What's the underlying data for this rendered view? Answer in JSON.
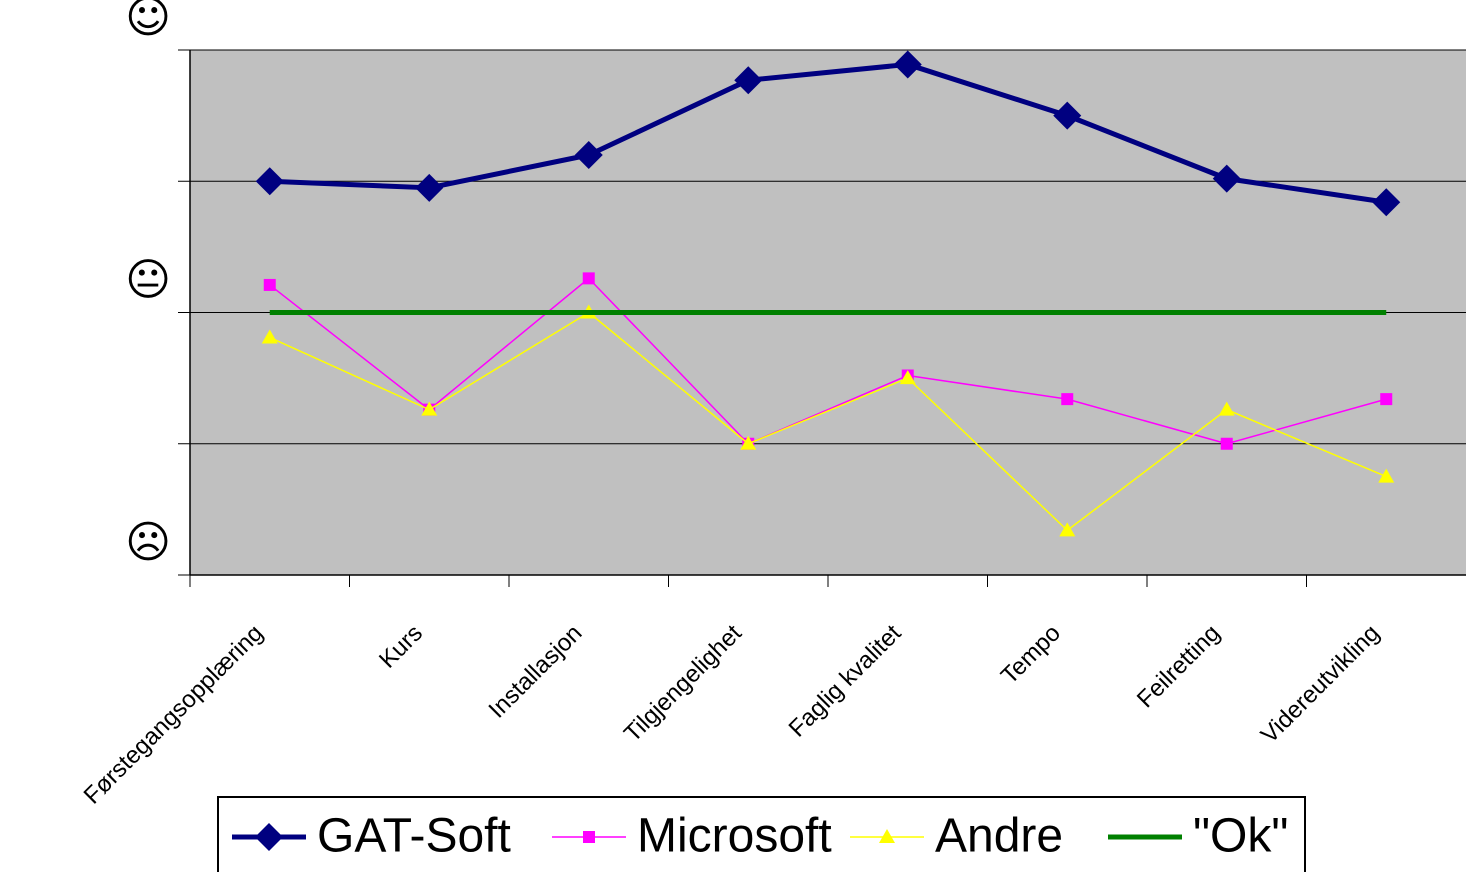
{
  "chart_data": {
    "type": "line",
    "categories": [
      "Førstegangsopplæring",
      "Kurs",
      "Installasjon",
      "Tilgjengelighet",
      "Faglig kvalitet",
      "Tempo",
      "Feilretting",
      "Videreutvikling"
    ],
    "series": [
      {
        "name": "GAT-Soft",
        "color": "#000080",
        "marker": "diamond",
        "values": [
          4.0,
          3.95,
          4.2,
          4.77,
          4.89,
          4.5,
          4.02,
          3.84
        ]
      },
      {
        "name": "Microsoft",
        "color": "#ff00ff",
        "marker": "square",
        "values": [
          3.21,
          2.26,
          3.26,
          2.0,
          2.52,
          2.34,
          2.0,
          2.34
        ]
      },
      {
        "name": "Andre",
        "color": "#ffff00",
        "marker": "triangle",
        "values": [
          2.81,
          2.26,
          3.0,
          2.0,
          2.5,
          1.34,
          2.26,
          1.75
        ]
      },
      {
        "name": "\"Ok\"",
        "color": "#008000",
        "marker": "none",
        "values": [
          3,
          3,
          3,
          3,
          3,
          3,
          3,
          3
        ]
      }
    ],
    "ylim": [
      1,
      5
    ],
    "yticks": [
      1,
      2,
      3,
      4,
      5
    ],
    "ytick_labels": [
      {
        "value": 1,
        "label": "☹"
      },
      {
        "value": 3,
        "label": "😐"
      },
      {
        "value": 5,
        "label": "☺"
      }
    ],
    "grid": true,
    "legend": "bottom"
  }
}
